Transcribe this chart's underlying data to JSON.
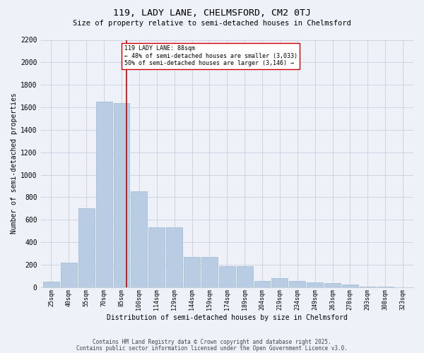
{
  "title": "119, LADY LANE, CHELMSFORD, CM2 0TJ",
  "subtitle": "Size of property relative to semi-detached houses in Chelmsford",
  "xlabel": "Distribution of semi-detached houses by size in Chelmsford",
  "ylabel": "Number of semi-detached properties",
  "categories": [
    "25sqm",
    "40sqm",
    "55sqm",
    "70sqm",
    "85sqm",
    "100sqm",
    "114sqm",
    "129sqm",
    "144sqm",
    "159sqm",
    "174sqm",
    "189sqm",
    "204sqm",
    "219sqm",
    "234sqm",
    "249sqm",
    "263sqm",
    "278sqm",
    "293sqm",
    "308sqm",
    "323sqm"
  ],
  "bar_heights": [
    50,
    220,
    700,
    1650,
    1640,
    850,
    530,
    530,
    270,
    270,
    185,
    185,
    55,
    80,
    55,
    40,
    35,
    20,
    5,
    5,
    0
  ],
  "bar_color": "#b8cce4",
  "bar_edge_color": "#9db8d2",
  "bar_linewidth": 0.5,
  "grid_color": "#c8d0dc",
  "background_color": "#eef2f8",
  "vline_x": 4.3,
  "vline_color": "#cc0000",
  "annotation_text": "119 LADY LANE: 88sqm\n← 48% of semi-detached houses are smaller (3,033)\n50% of semi-detached houses are larger (3,146) →",
  "annotation_box_color": "#ffffff",
  "annotation_box_edge": "#cc0000",
  "ylim": [
    0,
    2200
  ],
  "yticks": [
    0,
    200,
    400,
    600,
    800,
    1000,
    1200,
    1400,
    1600,
    1800,
    2000,
    2200
  ],
  "footnote1": "Contains HM Land Registry data © Crown copyright and database right 2025.",
  "footnote2": "Contains public sector information licensed under the Open Government Licence v3.0.",
  "title_fontsize": 9.5,
  "subtitle_fontsize": 7.5,
  "ylabel_fontsize": 7,
  "xlabel_fontsize": 7,
  "ytick_fontsize": 7,
  "xtick_fontsize": 6,
  "annot_fontsize": 6,
  "footnote_fontsize": 5.5
}
